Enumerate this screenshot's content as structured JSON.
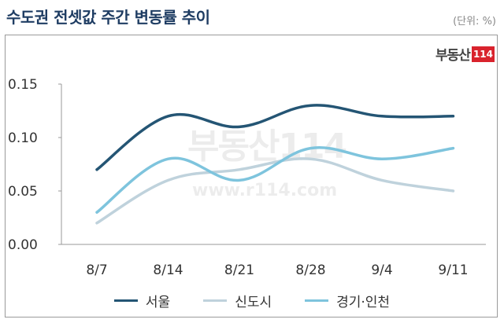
{
  "header": {
    "title": "수도권 전셋값 주간 변동률 추이",
    "unit": "(단위: %)"
  },
  "brand": {
    "text": "부동산",
    "box": "114"
  },
  "watermark": {
    "logo": "부동산114",
    "url": "www.r114.com"
  },
  "colors": {
    "seoul": "#245574",
    "newtown": "#bfd2dc",
    "gyeonggi": "#7ec4dd"
  },
  "chart_data": {
    "type": "line",
    "title": "수도권 전셋값 주간 변동률 추이",
    "categories": [
      "8/7",
      "8/14",
      "8/21",
      "8/28",
      "9/4",
      "9/11"
    ],
    "ylim": [
      0,
      0.15
    ],
    "yticks": [
      "0.00",
      "0.05",
      "0.10",
      "0.15"
    ],
    "grid": false,
    "legend_position": "bottom",
    "series": [
      {
        "name": "서울",
        "values": [
          0.07,
          0.12,
          0.11,
          0.13,
          0.12,
          0.12
        ]
      },
      {
        "name": "신도시",
        "values": [
          0.02,
          0.06,
          0.07,
          0.08,
          0.06,
          0.05
        ]
      },
      {
        "name": "경기·인천",
        "values": [
          0.03,
          0.08,
          0.06,
          0.09,
          0.08,
          0.09
        ]
      }
    ]
  }
}
